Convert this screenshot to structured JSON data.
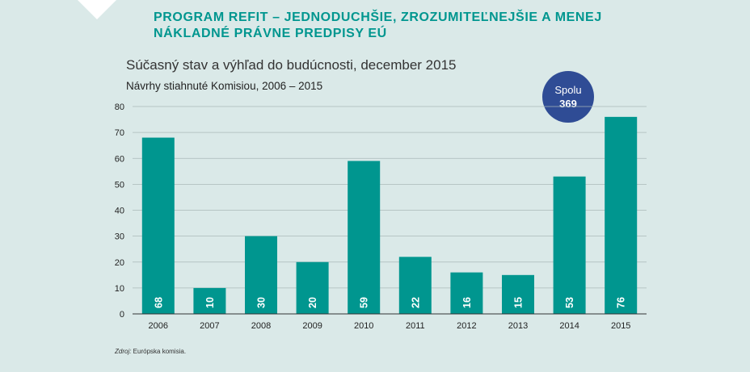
{
  "header": {
    "line1": "PROGRAM REFIT – JEDNODUCHŠIE, ZROZUMITEĽNEJŠIE A MENEJ",
    "line2": "NÁKLADNÉ PRÁVNE PREDPISY EÚ"
  },
  "badge": {
    "label": "Spolu",
    "value": "369"
  },
  "source": {
    "label": "Zdroj:",
    "text": " Európska komisia."
  },
  "colors": {
    "bar": "#00968f",
    "badge": "#2f4c95",
    "heading": "#00968f",
    "background": "#dae9e8"
  },
  "chart_data": {
    "type": "bar",
    "title": "Súčasný stav a výhľad do budúcnosti, december 2015",
    "subtitle": "Návrhy stiahnuté Komisiou, 2006 – 2015",
    "xlabel": "",
    "ylabel": "",
    "categories": [
      "2006",
      "2007",
      "2008",
      "2009",
      "2010",
      "2011",
      "2012",
      "2013",
      "2014",
      "2015"
    ],
    "values": [
      68,
      10,
      30,
      20,
      59,
      22,
      16,
      15,
      53,
      76
    ],
    "ylim": [
      0,
      80
    ],
    "yticks": [
      0,
      10,
      20,
      30,
      40,
      50,
      60,
      70,
      80
    ],
    "grid": true,
    "legend": "none"
  }
}
